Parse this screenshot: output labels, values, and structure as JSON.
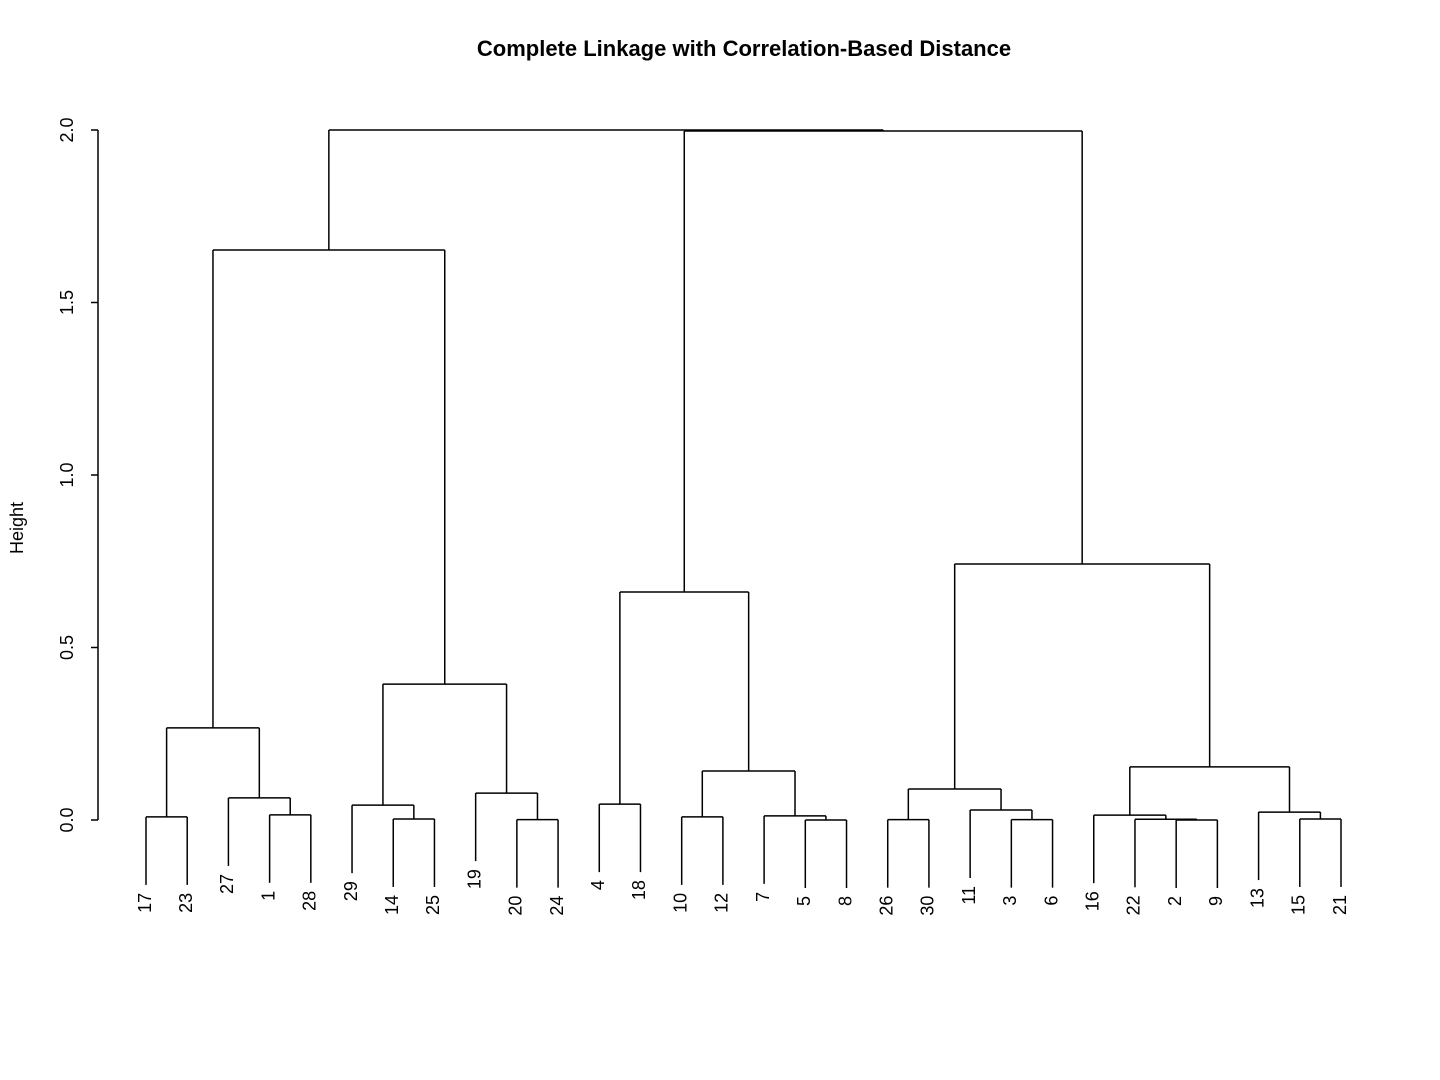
{
  "chart_data": {
    "type": "dendrogram",
    "title": "Complete Linkage with Correlation-Based Distance",
    "ylabel": "Height",
    "ylim": [
      0,
      2
    ],
    "yticks": [
      {
        "value": 0,
        "label": "0.0"
      },
      {
        "value": 0.5,
        "label": "0.5"
      },
      {
        "value": 1,
        "label": "1.0"
      },
      {
        "value": 1.5,
        "label": "1.5"
      },
      {
        "value": 2,
        "label": "2.0"
      }
    ],
    "labels": [
      "17",
      "23",
      "27",
      "1",
      "28",
      "29",
      "14",
      "25",
      "19",
      "20",
      "24",
      "4",
      "18",
      "10",
      "12",
      "7",
      "5",
      "8",
      "26",
      "30",
      "11",
      "3",
      "6",
      "16",
      "22",
      "2",
      "9",
      "13",
      "15",
      "21"
    ],
    "merges": [
      {
        "left": -26,
        "right": -27,
        "height": 0
      },
      {
        "left": -17,
        "right": -18,
        "height": 0
      },
      {
        "left": -10,
        "right": -11,
        "height": 0.001
      },
      {
        "left": -19,
        "right": -20,
        "height": 0.001
      },
      {
        "left": -22,
        "right": -23,
        "height": 0.001
      },
      {
        "left": -25,
        "right": 1,
        "height": 0.002
      },
      {
        "left": -29,
        "right": -30,
        "height": 0.003
      },
      {
        "left": -7,
        "right": -8,
        "height": 0.003
      },
      {
        "left": -1,
        "right": -2,
        "height": 0.009
      },
      {
        "left": -14,
        "right": -15,
        "height": 0.009
      },
      {
        "left": -16,
        "right": 2,
        "height": 0.012
      },
      {
        "left": -24,
        "right": 6,
        "height": 0.014
      },
      {
        "left": -4,
        "right": -5,
        "height": 0.015
      },
      {
        "left": -28,
        "right": 7,
        "height": 0.023
      },
      {
        "left": -21,
        "right": 5,
        "height": 0.029
      },
      {
        "left": -6,
        "right": 8,
        "height": 0.043
      },
      {
        "left": -12,
        "right": -13,
        "height": 0.046
      },
      {
        "left": -3,
        "right": 13,
        "height": 0.064
      },
      {
        "left": -9,
        "right": 3,
        "height": 0.078
      },
      {
        "left": 4,
        "right": 15,
        "height": 0.09
      },
      {
        "left": 10,
        "right": 11,
        "height": 0.142
      },
      {
        "left": 12,
        "right": 14,
        "height": 0.154
      },
      {
        "left": 9,
        "right": 18,
        "height": 0.267
      },
      {
        "left": 16,
        "right": 19,
        "height": 0.394
      },
      {
        "left": 17,
        "right": 21,
        "height": 0.661
      },
      {
        "left": 20,
        "right": 22,
        "height": 0.742
      },
      {
        "left": 23,
        "right": 24,
        "height": 1.652
      },
      {
        "left": 25,
        "right": 26,
        "height": 1.997
      },
      {
        "left": 27,
        "right": 28,
        "height": 2.0
      }
    ]
  }
}
